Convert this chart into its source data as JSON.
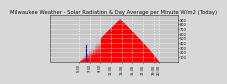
{
  "title": "Milwaukee Weather - Solar Radiation & Day Average per Minute W/m2 (Today)",
  "bg_color": "#d8d8d8",
  "plot_bg_color": "#c8c8c8",
  "grid_color": "#aaaaaa",
  "solar_color": "#ff0000",
  "avg_color": "#0000cc",
  "title_fontsize": 3.8,
  "tick_fontsize": 2.5,
  "ylim": [
    0,
    1000
  ],
  "xlim": [
    0,
    1440
  ],
  "sunrise": 330,
  "sunset": 1230,
  "peak_minute": 790,
  "peak_value": 920,
  "blue_line_minute": 410,
  "blue_line_height": 350,
  "vline_positions": [
    330,
    450,
    570,
    690,
    810,
    930,
    1050,
    1170,
    1230
  ],
  "ytick_vals": [
    100,
    200,
    300,
    400,
    500,
    600,
    700,
    800,
    900
  ],
  "xtick_positions": [
    330,
    450,
    570,
    690,
    810,
    930,
    1050,
    1170,
    1230
  ],
  "xtick_labels": [
    "5:30",
    "7:30",
    "9:30",
    "11:30",
    "13:30",
    "15:30",
    "17:30",
    "19:30",
    "20:30"
  ]
}
